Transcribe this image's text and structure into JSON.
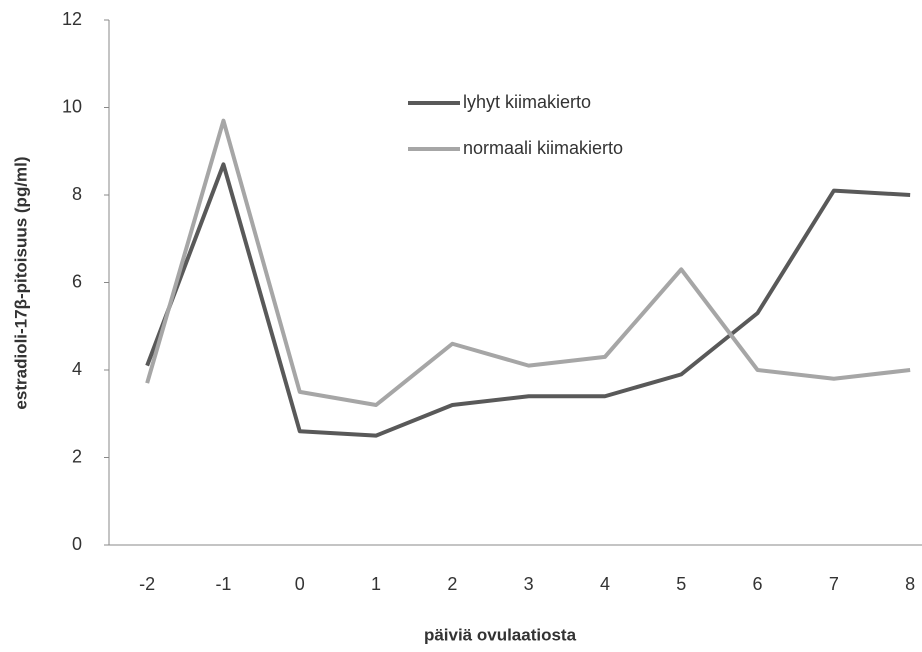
{
  "chart_data": {
    "type": "line",
    "x_label": "päiviä ovulaatiosta",
    "y_label": "estradioli-17β-pitoisuus (pg/ml)",
    "categories": [
      "-2",
      "-1",
      "0",
      "1",
      "2",
      "3",
      "4",
      "5",
      "6",
      "7",
      "8"
    ],
    "series": [
      {
        "name": "lyhyt kiimakierto",
        "color": "#595959",
        "values": [
          4.1,
          8.7,
          2.6,
          2.5,
          3.2,
          3.4,
          3.4,
          3.9,
          5.3,
          8.1,
          8.0
        ]
      },
      {
        "name": "normaali kiimakierto",
        "color": "#a6a6a6",
        "values": [
          3.7,
          9.7,
          3.5,
          3.2,
          4.6,
          4.1,
          4.3,
          6.3,
          4.0,
          3.8,
          4.0
        ]
      }
    ],
    "ylim": [
      0,
      12
    ],
    "yticks": [
      0,
      2,
      4,
      6,
      8,
      10,
      12
    ],
    "grid": false
  }
}
